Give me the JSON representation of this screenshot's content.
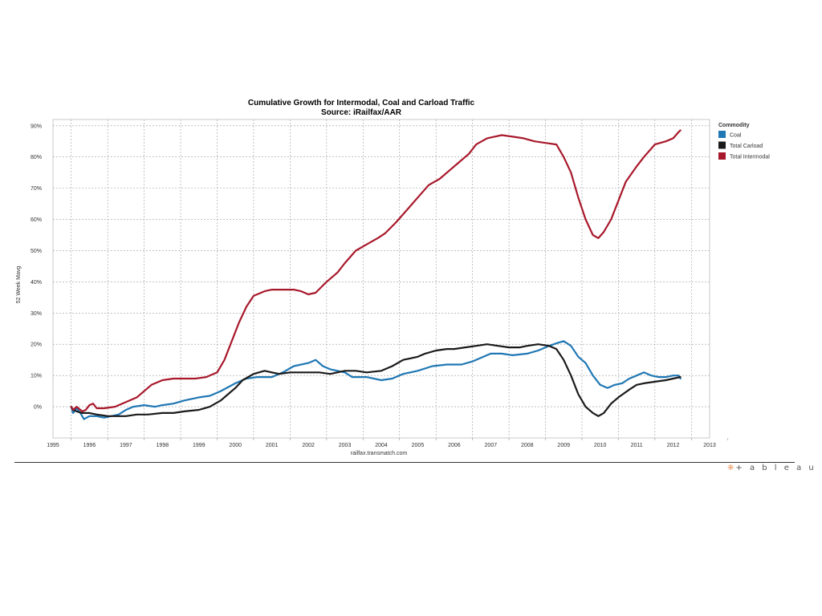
{
  "logo_text": "+ a b l e a u",
  "chart_data": {
    "type": "line",
    "title": "Cumulative Growth for Intermodal, Coal and Carload Traffic",
    "subtitle": "Source: iRailfax/AAR",
    "xlabel": "railfax.transmatch.com",
    "ylabel": "52 Week Mavg",
    "xlim": [
      1995,
      2013
    ],
    "ylim": [
      -10,
      92
    ],
    "x_ticks": [
      "1995",
      "1996",
      "1997",
      "1998",
      "1999",
      "2000",
      "2001",
      "2002",
      "2003",
      "2004",
      "2005",
      "2006",
      "2007",
      "2008",
      "2009",
      "2010",
      "2011",
      "2012",
      "2013"
    ],
    "y_ticks": [
      {
        "value": 90,
        "label": "90%"
      },
      {
        "value": 80,
        "label": "80%"
      },
      {
        "value": 70,
        "label": "70%"
      },
      {
        "value": 60,
        "label": "60%"
      },
      {
        "value": 50,
        "label": "50%"
      },
      {
        "value": 40,
        "label": "40%"
      },
      {
        "value": 30,
        "label": "30%"
      },
      {
        "value": 20,
        "label": "20%"
      },
      {
        "value": 10,
        "label": "10%"
      },
      {
        "value": 0,
        "label": "0%"
      }
    ],
    "grid": true,
    "legend": {
      "title": "Commodity",
      "position": "top-right"
    },
    "series": [
      {
        "name": "Coal",
        "color": "#1f77b4",
        "points": [
          [
            1995.5,
            0
          ],
          [
            1995.55,
            -2
          ],
          [
            1995.65,
            -0.5
          ],
          [
            1995.75,
            -2
          ],
          [
            1995.85,
            -4
          ],
          [
            1996.0,
            -3
          ],
          [
            1996.2,
            -3
          ],
          [
            1996.4,
            -3.5
          ],
          [
            1996.6,
            -3
          ],
          [
            1996.8,
            -2.5
          ],
          [
            1997.0,
            -1
          ],
          [
            1997.2,
            0
          ],
          [
            1997.5,
            0.5
          ],
          [
            1997.8,
            0
          ],
          [
            1998.0,
            0.5
          ],
          [
            1998.3,
            1
          ],
          [
            1998.6,
            2
          ],
          [
            1999.0,
            3
          ],
          [
            1999.3,
            3.5
          ],
          [
            1999.6,
            5
          ],
          [
            2000.0,
            7.5
          ],
          [
            2000.3,
            9
          ],
          [
            2000.6,
            9.5
          ],
          [
            2001.0,
            9.5
          ],
          [
            2001.3,
            11
          ],
          [
            2001.6,
            13
          ],
          [
            2002.0,
            14
          ],
          [
            2002.2,
            15
          ],
          [
            2002.4,
            13
          ],
          [
            2002.6,
            12
          ],
          [
            2003.0,
            11
          ],
          [
            2003.2,
            9.5
          ],
          [
            2003.6,
            9.5
          ],
          [
            2004.0,
            8.5
          ],
          [
            2004.3,
            9
          ],
          [
            2004.6,
            10.5
          ],
          [
            2005.0,
            11.5
          ],
          [
            2005.4,
            13
          ],
          [
            2005.8,
            13.5
          ],
          [
            2006.2,
            13.5
          ],
          [
            2006.5,
            14.5
          ],
          [
            2006.8,
            16
          ],
          [
            2007.0,
            17
          ],
          [
            2007.3,
            17
          ],
          [
            2007.6,
            16.5
          ],
          [
            2008.0,
            17
          ],
          [
            2008.3,
            18
          ],
          [
            2008.6,
            19.5
          ],
          [
            2008.85,
            20.5
          ],
          [
            2009.0,
            21
          ],
          [
            2009.2,
            19.5
          ],
          [
            2009.4,
            16
          ],
          [
            2009.6,
            14
          ],
          [
            2009.8,
            10
          ],
          [
            2010.0,
            7
          ],
          [
            2010.2,
            6
          ],
          [
            2010.4,
            7
          ],
          [
            2010.6,
            7.5
          ],
          [
            2010.8,
            9
          ],
          [
            2011.0,
            10
          ],
          [
            2011.2,
            11
          ],
          [
            2011.4,
            10
          ],
          [
            2011.6,
            9.5
          ],
          [
            2011.8,
            9.5
          ],
          [
            2012.0,
            10
          ],
          [
            2012.15,
            10
          ],
          [
            2012.2,
            9
          ]
        ]
      },
      {
        "name": "Total Carload",
        "color": "#1a1a1a",
        "points": [
          [
            1995.5,
            0
          ],
          [
            1995.55,
            -1
          ],
          [
            1995.65,
            -1.5
          ],
          [
            1995.8,
            -2
          ],
          [
            1996.0,
            -2
          ],
          [
            1996.2,
            -2.5
          ],
          [
            1996.5,
            -3
          ],
          [
            1996.8,
            -3
          ],
          [
            1997.0,
            -3
          ],
          [
            1997.3,
            -2.5
          ],
          [
            1997.6,
            -2.5
          ],
          [
            1998.0,
            -2
          ],
          [
            1998.3,
            -2
          ],
          [
            1998.6,
            -1.5
          ],
          [
            1999.0,
            -1
          ],
          [
            1999.3,
            0
          ],
          [
            1999.6,
            2
          ],
          [
            1999.8,
            4
          ],
          [
            2000.0,
            6
          ],
          [
            2000.2,
            8.5
          ],
          [
            2000.5,
            10.5
          ],
          [
            2000.8,
            11.5
          ],
          [
            2001.0,
            11
          ],
          [
            2001.2,
            10.5
          ],
          [
            2001.5,
            11
          ],
          [
            2002.0,
            11
          ],
          [
            2002.3,
            11
          ],
          [
            2002.6,
            10.5
          ],
          [
            2003.0,
            11.5
          ],
          [
            2003.3,
            11.5
          ],
          [
            2003.6,
            11
          ],
          [
            2004.0,
            11.5
          ],
          [
            2004.3,
            13
          ],
          [
            2004.6,
            15
          ],
          [
            2005.0,
            16
          ],
          [
            2005.2,
            17
          ],
          [
            2005.5,
            18
          ],
          [
            2005.8,
            18.5
          ],
          [
            2006.0,
            18.5
          ],
          [
            2006.3,
            19
          ],
          [
            2006.6,
            19.5
          ],
          [
            2006.9,
            20
          ],
          [
            2007.2,
            19.5
          ],
          [
            2007.5,
            19
          ],
          [
            2007.8,
            19
          ],
          [
            2008.0,
            19.5
          ],
          [
            2008.3,
            20
          ],
          [
            2008.6,
            19.5
          ],
          [
            2008.8,
            18.5
          ],
          [
            2009.0,
            15
          ],
          [
            2009.2,
            10
          ],
          [
            2009.4,
            4
          ],
          [
            2009.6,
            0
          ],
          [
            2009.8,
            -2
          ],
          [
            2009.95,
            -3
          ],
          [
            2010.1,
            -2
          ],
          [
            2010.3,
            1
          ],
          [
            2010.5,
            3
          ],
          [
            2010.8,
            5.5
          ],
          [
            2011.0,
            7
          ],
          [
            2011.2,
            7.5
          ],
          [
            2011.5,
            8
          ],
          [
            2011.8,
            8.5
          ],
          [
            2012.0,
            9
          ],
          [
            2012.2,
            9.5
          ]
        ]
      },
      {
        "name": "Total Intermodal",
        "color": "#a8182b",
        "points": [
          [
            1995.5,
            0
          ],
          [
            1995.55,
            -1
          ],
          [
            1995.65,
            0
          ],
          [
            1995.8,
            -1.5
          ],
          [
            1995.9,
            -1
          ],
          [
            1996.0,
            0.5
          ],
          [
            1996.1,
            1
          ],
          [
            1996.2,
            -0.5
          ],
          [
            1996.4,
            -0.5
          ],
          [
            1996.7,
            0
          ],
          [
            1997.0,
            1.5
          ],
          [
            1997.3,
            3
          ],
          [
            1997.5,
            5
          ],
          [
            1997.7,
            7
          ],
          [
            1998.0,
            8.5
          ],
          [
            1998.3,
            9
          ],
          [
            1998.6,
            9
          ],
          [
            1998.9,
            9
          ],
          [
            1999.2,
            9.5
          ],
          [
            1999.5,
            11
          ],
          [
            1999.7,
            15
          ],
          [
            1999.9,
            21
          ],
          [
            2000.1,
            27
          ],
          [
            2000.3,
            32
          ],
          [
            2000.5,
            35.5
          ],
          [
            2000.8,
            37
          ],
          [
            2001.0,
            37.5
          ],
          [
            2001.3,
            37.5
          ],
          [
            2001.6,
            37.5
          ],
          [
            2001.8,
            37
          ],
          [
            2002.0,
            36
          ],
          [
            2002.2,
            36.5
          ],
          [
            2002.5,
            40
          ],
          [
            2002.8,
            43
          ],
          [
            2003.0,
            46
          ],
          [
            2003.3,
            50
          ],
          [
            2003.6,
            52
          ],
          [
            2003.9,
            54
          ],
          [
            2004.1,
            55.5
          ],
          [
            2004.4,
            59
          ],
          [
            2004.7,
            63
          ],
          [
            2005.0,
            67
          ],
          [
            2005.3,
            71
          ],
          [
            2005.6,
            73
          ],
          [
            2005.9,
            76
          ],
          [
            2006.1,
            78
          ],
          [
            2006.4,
            81
          ],
          [
            2006.6,
            84
          ],
          [
            2006.9,
            86
          ],
          [
            2007.1,
            86.5
          ],
          [
            2007.3,
            87
          ],
          [
            2007.6,
            86.5
          ],
          [
            2007.9,
            86
          ],
          [
            2008.2,
            85
          ],
          [
            2008.5,
            84.5
          ],
          [
            2008.8,
            84
          ],
          [
            2009.0,
            80
          ],
          [
            2009.2,
            75
          ],
          [
            2009.4,
            67
          ],
          [
            2009.6,
            60
          ],
          [
            2009.8,
            55
          ],
          [
            2009.95,
            54
          ],
          [
            2010.1,
            56
          ],
          [
            2010.3,
            60
          ],
          [
            2010.5,
            66
          ],
          [
            2010.7,
            72
          ],
          [
            2011.0,
            77
          ],
          [
            2011.2,
            80
          ],
          [
            2011.5,
            84
          ],
          [
            2011.8,
            85
          ],
          [
            2012.0,
            86
          ],
          [
            2012.15,
            88
          ],
          [
            2012.2,
            88.5
          ]
        ]
      }
    ]
  }
}
